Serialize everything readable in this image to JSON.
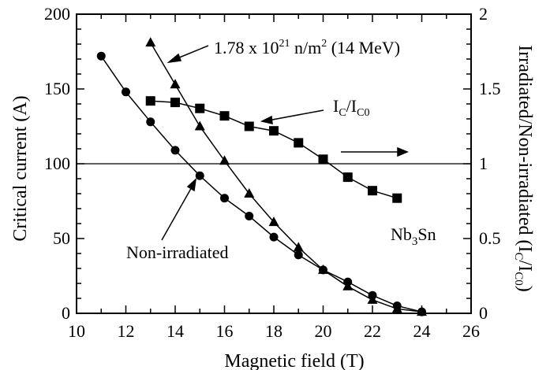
{
  "chart_data": {
    "type": "scatter",
    "xlabel": "Magnetic field (T)",
    "ylabel": "Critical current (A)",
    "y2label": "Irradiated/Non-irradiated (I",
    "y2label_sub1": "C",
    "y2label_mid": "/I",
    "y2label_sub2": "C0",
    "y2label_end": ")",
    "xlim": [
      10,
      26
    ],
    "ylim": [
      0,
      200
    ],
    "y2lim": [
      0,
      2
    ],
    "xticks": [
      10,
      12,
      14,
      16,
      18,
      20,
      22,
      24,
      26
    ],
    "yticks": [
      0,
      50,
      100,
      150,
      200
    ],
    "y2ticks": [
      "0",
      "0.5",
      "1",
      "1.5",
      "2"
    ],
    "y2tick_values": [
      0,
      0.5,
      1,
      1.5,
      2
    ],
    "reference_line_y2": 1,
    "series": [
      {
        "marker": "circle",
        "axis": "left",
        "x": [
          11,
          12,
          13,
          14,
          15,
          16,
          17,
          18,
          19,
          20,
          21,
          22,
          23,
          24
        ],
        "y": [
          172,
          148,
          128,
          109,
          92,
          77,
          65,
          51,
          39,
          29,
          21,
          12,
          5,
          1
        ]
      },
      {
        "marker": "triangle",
        "axis": "left",
        "x": [
          13,
          14,
          15,
          16,
          17,
          18,
          19,
          20,
          21,
          22,
          23,
          24
        ],
        "y": [
          181,
          153,
          125,
          102,
          80,
          61,
          44,
          29,
          18,
          9,
          3,
          1
        ]
      },
      {
        "marker": "square",
        "axis": "right",
        "x": [
          13,
          14,
          15,
          16,
          17,
          18,
          19,
          20,
          21,
          22,
          23
        ],
        "y": [
          1.42,
          1.41,
          1.37,
          1.32,
          1.25,
          1.22,
          1.14,
          1.03,
          0.91,
          0.82,
          0.77
        ]
      }
    ],
    "annotations": {
      "irradiated_label": "1.78 x 10",
      "irradiated_sup": "21",
      "irradiated_mid": " n/m",
      "irradiated_sup2": "2",
      "irradiated_end": " (14 MeV)",
      "ratio_label": "I",
      "ratio_sub1": "C",
      "ratio_mid": "/I",
      "ratio_sub2": "C0",
      "nonirr_label": "Non-irradiated",
      "material": "Nb",
      "material_sub": "3",
      "material_end": "Sn"
    }
  }
}
